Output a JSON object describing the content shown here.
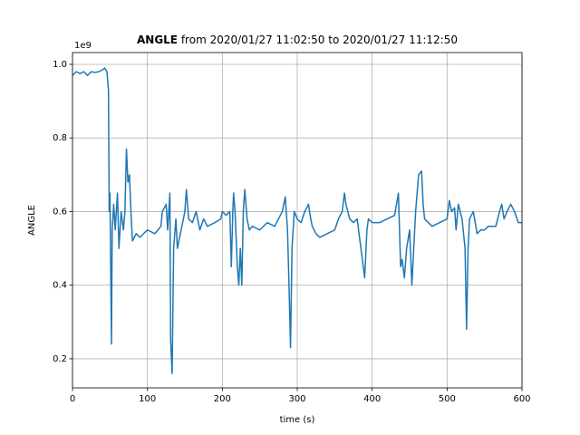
{
  "chart_data": {
    "type": "line",
    "title_parts": [
      "ANGLE",
      " from 2020/01/27 11:02:50 to 2020/01/27 11:12:50"
    ],
    "x_label": "time (s)",
    "y_label": "ANGLE",
    "y_offset_label": "1e9",
    "xlim": [
      0,
      600
    ],
    "ylim": [
      0.121,
      1.032
    ],
    "xticks": [
      0,
      100,
      200,
      300,
      400,
      500,
      600
    ],
    "yticks": [
      0.2,
      0.4,
      0.6,
      0.8,
      {
        "value": 1,
        "label": "1.0"
      }
    ],
    "grid": true,
    "series": [
      {
        "name": "ANGLE",
        "color": "#1f77b4",
        "x": [
          0,
          5,
          10,
          15,
          20,
          25,
          30,
          35,
          40,
          43,
          46,
          48,
          49,
          50,
          52,
          53,
          55,
          57,
          60,
          62,
          65,
          68,
          70,
          72,
          74,
          76,
          78,
          80,
          85,
          90,
          100,
          110,
          118,
          120,
          125,
          127,
          130,
          131,
          133,
          135,
          138,
          140,
          145,
          150,
          152,
          155,
          160,
          165,
          170,
          175,
          180,
          190,
          198,
          200,
          205,
          210,
          212,
          214,
          215,
          217,
          220,
          222,
          224,
          226,
          228,
          230,
          233,
          236,
          240,
          250,
          260,
          270,
          280,
          284,
          287,
          289,
          291,
          293,
          296,
          300,
          305,
          310,
          315,
          318,
          320,
          325,
          330,
          340,
          350,
          355,
          360,
          363,
          365,
          370,
          375,
          380,
          385,
          390,
          393,
          395,
          400,
          410,
          420,
          430,
          435,
          438,
          440,
          443,
          446,
          450,
          453,
          455,
          458,
          462,
          466,
          468,
          470,
          480,
          490,
          500,
          503,
          506,
          510,
          512,
          515,
          520,
          524,
          526,
          528,
          530,
          535,
          540,
          545,
          550,
          555,
          560,
          565,
          570,
          573,
          576,
          580,
          585,
          590,
          595,
          600
        ],
        "values": [
          0.97,
          0.98,
          0.975,
          0.98,
          0.97,
          0.98,
          0.978,
          0.98,
          0.985,
          0.99,
          0.98,
          0.93,
          0.6,
          0.65,
          0.24,
          0.55,
          0.62,
          0.55,
          0.65,
          0.5,
          0.6,
          0.55,
          0.6,
          0.77,
          0.68,
          0.7,
          0.6,
          0.52,
          0.54,
          0.53,
          0.55,
          0.54,
          0.56,
          0.6,
          0.62,
          0.55,
          0.65,
          0.25,
          0.16,
          0.5,
          0.58,
          0.5,
          0.55,
          0.6,
          0.66,
          0.58,
          0.57,
          0.6,
          0.55,
          0.58,
          0.56,
          0.57,
          0.58,
          0.6,
          0.59,
          0.6,
          0.45,
          0.6,
          0.65,
          0.6,
          0.45,
          0.4,
          0.5,
          0.4,
          0.6,
          0.66,
          0.58,
          0.55,
          0.56,
          0.55,
          0.57,
          0.56,
          0.6,
          0.64,
          0.55,
          0.4,
          0.23,
          0.5,
          0.6,
          0.58,
          0.57,
          0.6,
          0.62,
          0.58,
          0.56,
          0.54,
          0.53,
          0.54,
          0.55,
          0.58,
          0.6,
          0.65,
          0.62,
          0.58,
          0.57,
          0.58,
          0.5,
          0.42,
          0.55,
          0.58,
          0.57,
          0.57,
          0.58,
          0.59,
          0.65,
          0.45,
          0.47,
          0.42,
          0.5,
          0.55,
          0.4,
          0.48,
          0.6,
          0.7,
          0.71,
          0.62,
          0.58,
          0.56,
          0.57,
          0.58,
          0.63,
          0.6,
          0.61,
          0.55,
          0.62,
          0.58,
          0.5,
          0.28,
          0.5,
          0.58,
          0.6,
          0.54,
          0.55,
          0.55,
          0.56,
          0.56,
          0.56,
          0.6,
          0.62,
          0.58,
          0.6,
          0.62,
          0.6,
          0.57,
          0.57
        ]
      }
    ]
  }
}
